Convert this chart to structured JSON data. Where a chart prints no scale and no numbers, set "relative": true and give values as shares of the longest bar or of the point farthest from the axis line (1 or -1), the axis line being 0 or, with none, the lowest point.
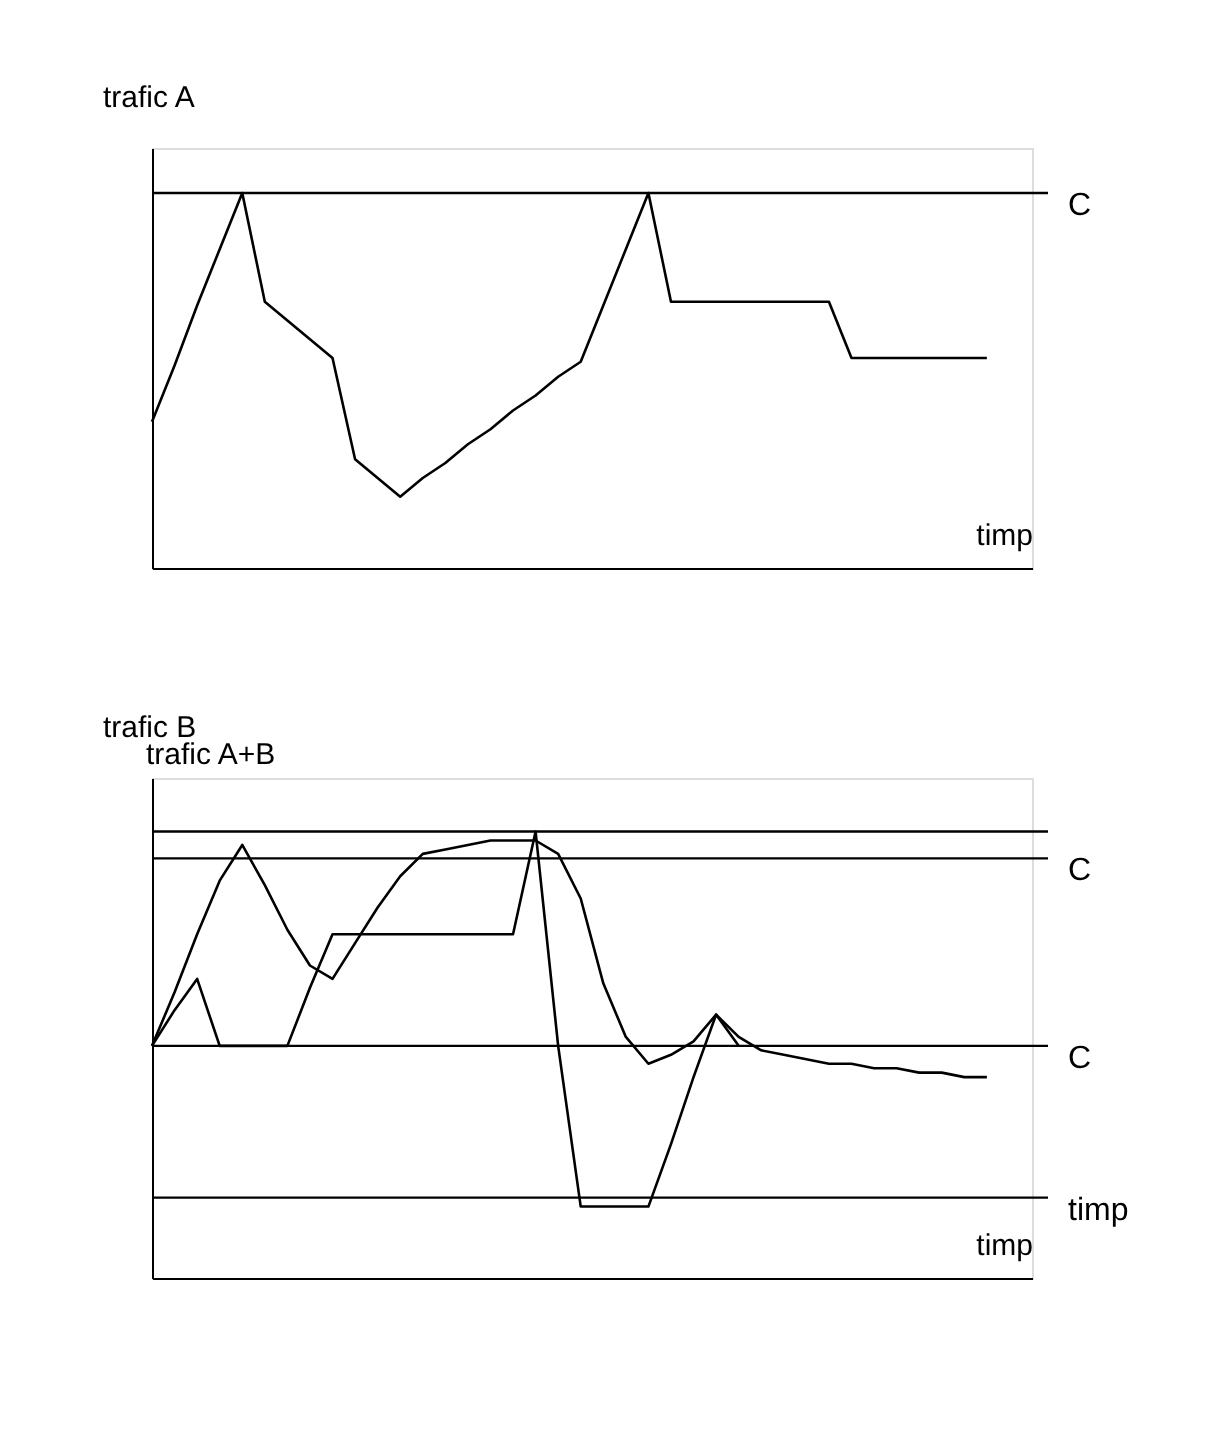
{
  "chart_data": [
    {
      "type": "line",
      "relative": true,
      "ylabel": "trafic A",
      "xlabel": "timp",
      "tick_labels": false,
      "categories": [
        null,
        null,
        null,
        null,
        null,
        null,
        null,
        null,
        null,
        null,
        null,
        null,
        null,
        null,
        null,
        null,
        null,
        null,
        null,
        null,
        null,
        null,
        null,
        null,
        null,
        null,
        null,
        null,
        null,
        null,
        null,
        null,
        null,
        null,
        null,
        null,
        null,
        null,
        null,
        null
      ],
      "series": [
        {
          "color": "#000000",
          "values": [
            0.39,
            0.54,
            0.7,
            0.85,
            1.0,
            0.71,
            0.66,
            0.61,
            0.56,
            0.29,
            0.24,
            0.19,
            0.24,
            0.28,
            0.33,
            0.37,
            0.42,
            0.46,
            0.51,
            0.55,
            0.7,
            0.85,
            1.0,
            0.71,
            0.71,
            0.71,
            0.71,
            0.71,
            0.71,
            0.71,
            0.71,
            0.56,
            0.56,
            0.56,
            0.56,
            0.56,
            0.56,
            0.56,
            null,
            null
          ]
        }
      ],
      "ref_lines": [
        {
          "axis": "y",
          "value": 1,
          "label": "C"
        }
      ]
    },
    {
      "type": "line",
      "relative": true,
      "ylabel": "trafic B",
      "xlabel": "timp",
      "tick_labels": false,
      "annotations": [
        "trafic A+B"
      ],
      "categories": [
        null,
        null,
        null,
        null,
        null,
        null,
        null,
        null,
        null,
        null,
        null,
        null,
        null,
        null,
        null,
        null,
        null,
        null,
        null,
        null,
        null,
        null,
        null,
        null,
        null,
        null,
        null,
        null,
        null,
        null,
        null,
        null,
        null,
        null,
        null,
        null,
        null,
        null,
        null,
        null
      ],
      "series": [
        {
          "color": "#000000",
          "values": [
            0.52,
            0.6,
            0.67,
            0.52,
            0.52,
            0.52,
            0.52,
            0.65,
            0.77,
            0.77,
            0.77,
            0.77,
            0.77,
            0.77,
            0.77,
            0.77,
            0.77,
            1.0,
            0.52,
            0.16,
            0.16,
            0.16,
            0.16,
            0.3,
            0.45,
            0.59,
            0.52,
            null,
            null,
            null,
            null,
            null,
            null,
            null,
            null,
            null,
            null,
            null,
            null,
            null
          ]
        },
        {
          "color": "#000000",
          "values": [
            0.52,
            0.64,
            0.77,
            0.89,
            0.97,
            0.88,
            0.78,
            0.7,
            0.67,
            0.75,
            0.83,
            0.9,
            0.95,
            0.96,
            0.97,
            0.98,
            0.98,
            0.98,
            0.95,
            0.85,
            0.66,
            0.54,
            0.48,
            0.5,
            0.53,
            0.59,
            0.54,
            0.51,
            0.5,
            0.49,
            0.48,
            0.48,
            0.47,
            0.47,
            0.46,
            0.46,
            0.45,
            0.45,
            null,
            null
          ]
        }
      ],
      "ref_lines": [
        {
          "axis": "y",
          "value": 1,
          "label": null
        },
        {
          "axis": "y",
          "value": 0.94,
          "label": "C"
        },
        {
          "axis": "y",
          "value": 0.52,
          "label": "C"
        },
        {
          "axis": "y",
          "value": 0.18,
          "label": "timp"
        }
      ]
    }
  ]
}
